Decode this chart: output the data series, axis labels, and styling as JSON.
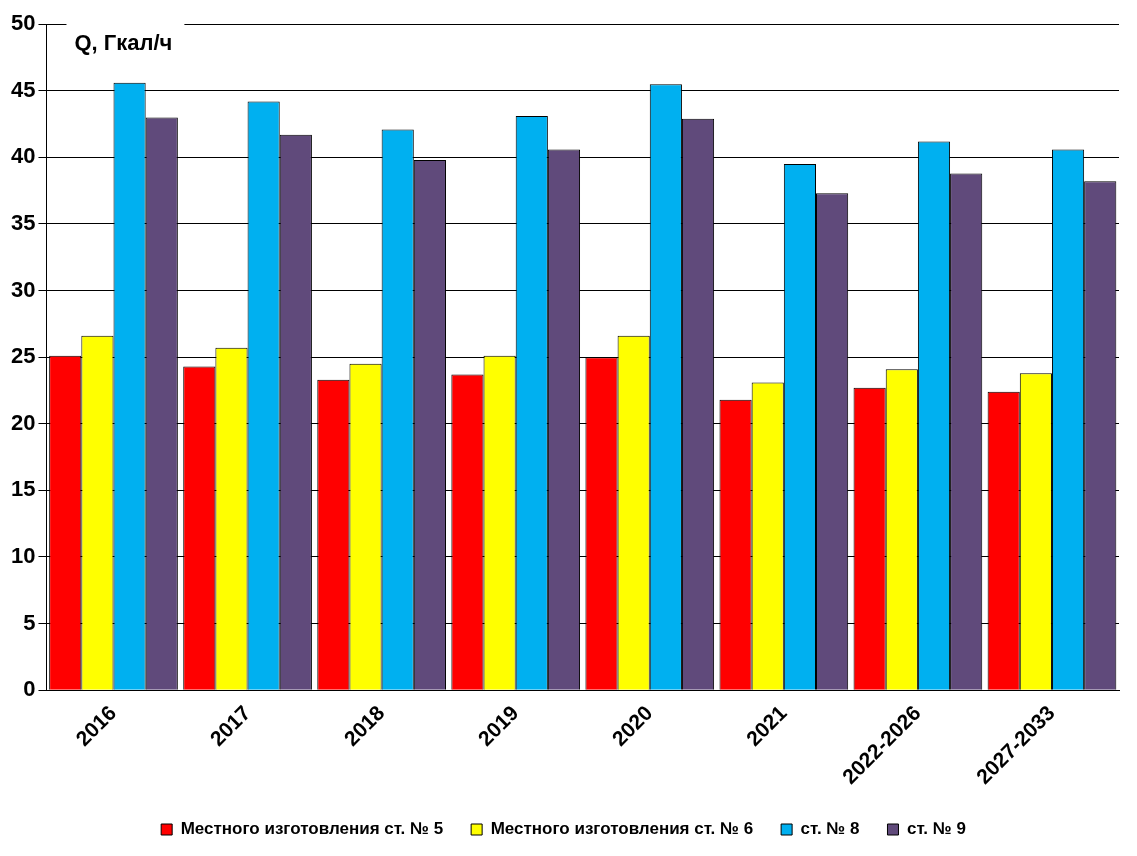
{
  "chart_data": {
    "type": "bar",
    "ylabel": "Q, Гкал/ч",
    "categories": [
      "2016",
      "2017",
      "2018",
      "2019",
      "2020",
      "2021",
      "2022-2026",
      "2027-2033"
    ],
    "series": [
      {
        "name": "Местного изготовления ст. № 5",
        "color": "#ff0000",
        "values": [
          25.1,
          24.3,
          23.3,
          23.7,
          25.0,
          21.8,
          22.7,
          22.4
        ]
      },
      {
        "name": "Местного изготовления ст. № 6",
        "color": "#ffff00",
        "values": [
          26.6,
          25.7,
          24.5,
          25.1,
          26.6,
          23.1,
          24.1,
          23.8
        ]
      },
      {
        "name": "ст. № 8",
        "color": "#00b0f0",
        "values": [
          45.6,
          44.2,
          42.1,
          43.1,
          45.5,
          39.5,
          41.2,
          40.6
        ]
      },
      {
        "name": "ст. № 9",
        "color": "#604a7b",
        "values": [
          43.0,
          41.7,
          39.8,
          40.6,
          42.9,
          37.3,
          38.8,
          38.2
        ]
      }
    ],
    "ylim": [
      0,
      50
    ],
    "yticks": [
      0,
      5,
      10,
      15,
      20,
      25,
      30,
      35,
      40,
      45,
      50
    ],
    "grid": "y",
    "legend": "bottom"
  }
}
